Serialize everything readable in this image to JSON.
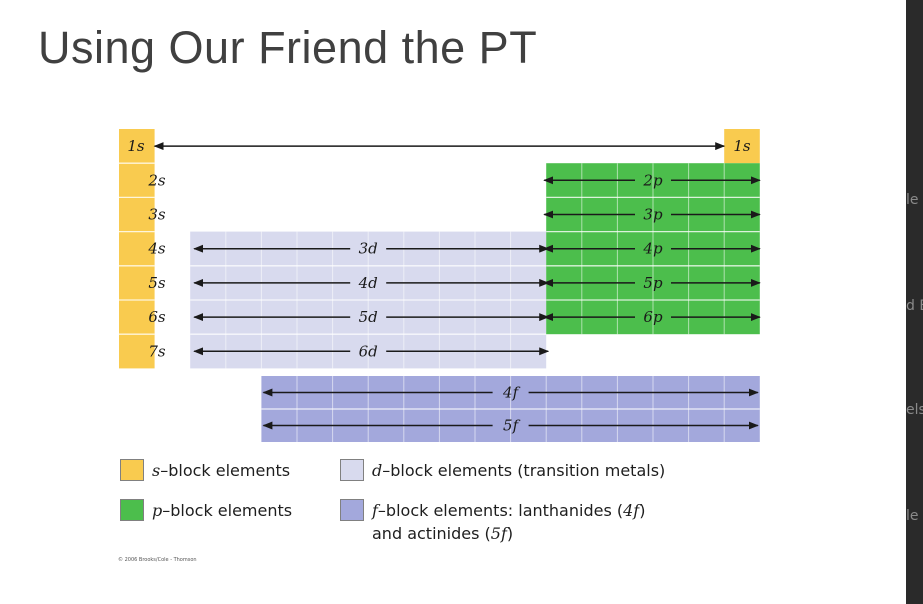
{
  "slide": {
    "title": "Using Our Friend the PT"
  },
  "side_strip": {
    "fragments": [
      "le",
      "d E",
      "els",
      "le"
    ]
  },
  "colors": {
    "s_block": "#F9CB4F",
    "p_block": "#4CBE4C",
    "d_block": "#D8DAEE",
    "f_block": "#A3A8DC",
    "arrow": "#1a1a1a",
    "cell_line": "#ffffff"
  },
  "diagram": {
    "s_labels": [
      "1s",
      "2s",
      "3s",
      "4s",
      "5s",
      "6s",
      "7s"
    ],
    "he_label": "1s",
    "d_labels": [
      "3d",
      "4d",
      "5d",
      "6d"
    ],
    "p_labels": [
      "2p",
      "3p",
      "4p",
      "5p",
      "6p"
    ],
    "f_labels": [
      "4f",
      "5f"
    ]
  },
  "legend": {
    "s": {
      "letter": "s",
      "text": "–block elements"
    },
    "p": {
      "letter": "p",
      "text": "–block elements"
    },
    "d": {
      "letter": "d",
      "text": "–block elements (transition metals)"
    },
    "f": {
      "letter": "f",
      "text": "–block elements: lanthanides (",
      "l_letter": "4f",
      "l_close": ")",
      "line2_pre": "and actinides (",
      "a_letter": "5f",
      "a_close": ")"
    }
  },
  "credit": "© 2006 Brooks/Cole - Thomson"
}
